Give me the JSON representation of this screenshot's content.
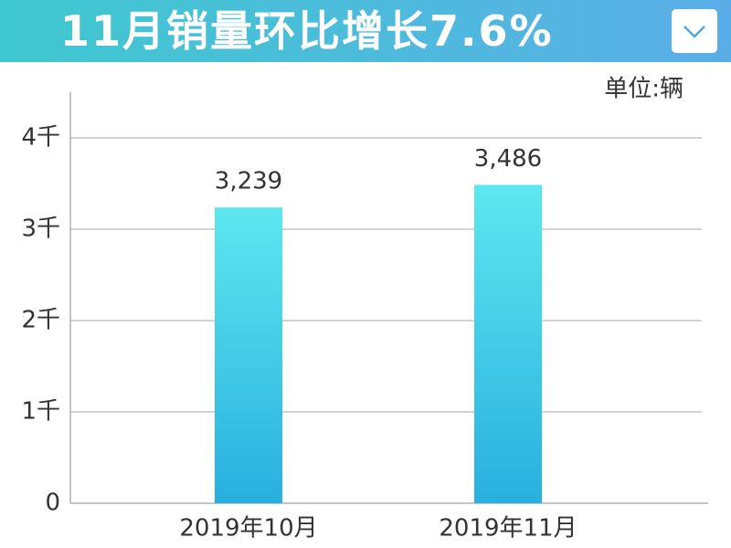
{
  "header": {
    "title": "11月销量环比增长7.6%"
  },
  "chart_data": {
    "type": "bar",
    "unit": "单位:辆",
    "categories": [
      "2019年10月",
      "2019年11月"
    ],
    "values": [
      3239,
      3486
    ],
    "value_labels": [
      "3,239",
      "3,486"
    ],
    "ylim": [
      0,
      4500
    ],
    "yticks": [
      0,
      {
        "value": 1000,
        "label": "1千"
      },
      {
        "value": 2000,
        "label": "2千"
      },
      {
        "value": 3000,
        "label": "3千"
      },
      {
        "value": 4000,
        "label": "4千"
      }
    ],
    "grid": true
  }
}
